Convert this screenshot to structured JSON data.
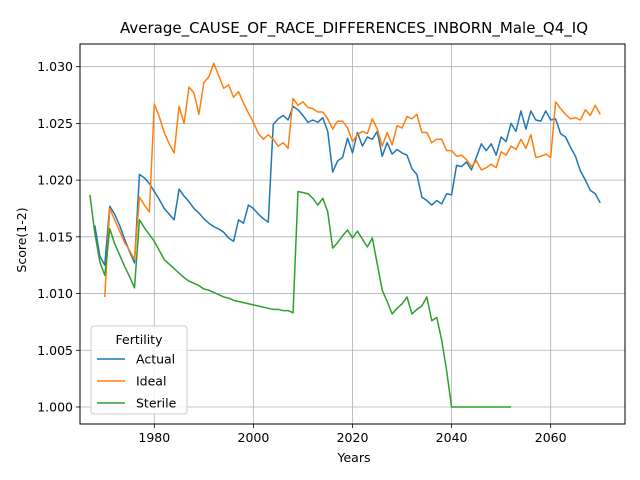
{
  "chart_data": {
    "type": "line",
    "title": "Average_CAUSE_OF_RACE_DIFFERENCES_INBORN_Male_Q4_IQ",
    "xlabel": "Years",
    "ylabel": "Score(1-2)",
    "xlim": [
      1965,
      2075
    ],
    "ylim": [
      0.9985,
      1.032
    ],
    "xticks": [
      1980,
      2000,
      2020,
      2040,
      2060
    ],
    "xtick_labels": [
      "1980",
      "2000",
      "2020",
      "2040",
      "2060"
    ],
    "yticks": [
      1.0,
      1.005,
      1.01,
      1.015,
      1.02,
      1.025,
      1.03
    ],
    "ytick_labels": [
      "1.000",
      "1.005",
      "1.010",
      "1.015",
      "1.020",
      "1.025",
      "1.030"
    ],
    "grid": true,
    "legend": {
      "title": "Fertility",
      "placement": "lower-left"
    },
    "series": [
      {
        "name": "Actual",
        "color": "#1f77b4",
        "x": [
          1968,
          1969,
          1970,
          1971,
          1972,
          1973,
          1974,
          1975,
          1976,
          1977,
          1978,
          1979,
          1980,
          1981,
          1982,
          1983,
          1984,
          1985,
          1986,
          1987,
          1988,
          1989,
          1990,
          1991,
          1992,
          1993,
          1994,
          1995,
          1996,
          1997,
          1998,
          1999,
          2000,
          2001,
          2002,
          2003,
          2004,
          2005,
          2006,
          2007,
          2008,
          2009,
          2010,
          2011,
          2012,
          2013,
          2014,
          2015,
          2016,
          2017,
          2018,
          2019,
          2020,
          2021,
          2022,
          2023,
          2024,
          2025,
          2026,
          2027,
          2028,
          2029,
          2030,
          2031,
          2032,
          2033,
          2034,
          2035,
          2036,
          2037,
          2038,
          2039,
          2040,
          2041,
          2042,
          2043,
          2044,
          2045,
          2046,
          2047,
          2048,
          2049,
          2050,
          2051,
          2052,
          2053,
          2054,
          2055,
          2056,
          2057,
          2058,
          2059,
          2060,
          2061,
          2062,
          2063,
          2064,
          2065,
          2066,
          2067,
          2068,
          2069,
          2070
        ],
        "y": [
          1.016,
          1.0133,
          1.0125,
          1.0177,
          1.017,
          1.016,
          1.0148,
          1.0137,
          1.0127,
          1.0205,
          1.0202,
          1.0197,
          1.019,
          1.0183,
          1.0175,
          1.017,
          1.0165,
          1.0192,
          1.0186,
          1.0181,
          1.0175,
          1.0171,
          1.0166,
          1.0162,
          1.0159,
          1.0157,
          1.0154,
          1.0149,
          1.0146,
          1.0165,
          1.0162,
          1.0178,
          1.0175,
          1.017,
          1.0166,
          1.0163,
          1.0249,
          1.0254,
          1.0257,
          1.0253,
          1.0265,
          1.0262,
          1.0257,
          1.0251,
          1.0253,
          1.0251,
          1.0255,
          1.0243,
          1.0207,
          1.0217,
          1.022,
          1.0237,
          1.0224,
          1.0242,
          1.023,
          1.0238,
          1.0236,
          1.0243,
          1.0221,
          1.0233,
          1.0223,
          1.0227,
          1.0224,
          1.0222,
          1.021,
          1.0205,
          1.0185,
          1.0182,
          1.0178,
          1.0182,
          1.0179,
          1.0188,
          1.0187,
          1.0213,
          1.0212,
          1.0216,
          1.0209,
          1.022,
          1.0232,
          1.0226,
          1.0232,
          1.0222,
          1.0238,
          1.0234,
          1.025,
          1.0243,
          1.0261,
          1.0245,
          1.0261,
          1.0253,
          1.0252,
          1.0261,
          1.0253,
          1.0254,
          1.0241,
          1.0238,
          1.0229,
          1.0221,
          1.0208,
          1.02,
          1.0191,
          1.0188,
          1.018
        ]
      },
      {
        "name": "Ideal",
        "color": "#ff7f0e",
        "x": [
          1970,
          1971,
          1972,
          1973,
          1974,
          1975,
          1976,
          1977,
          1978,
          1979,
          1980,
          1981,
          1982,
          1983,
          1984,
          1985,
          1986,
          1987,
          1988,
          1989,
          1990,
          1991,
          1992,
          1993,
          1994,
          1995,
          1996,
          1997,
          1998,
          1999,
          2000,
          2001,
          2002,
          2003,
          2004,
          2005,
          2006,
          2007,
          2008,
          2009,
          2010,
          2011,
          2012,
          2013,
          2014,
          2015,
          2016,
          2017,
          2018,
          2019,
          2020,
          2021,
          2022,
          2023,
          2024,
          2025,
          2026,
          2027,
          2028,
          2029,
          2030,
          2031,
          2032,
          2033,
          2034,
          2035,
          2036,
          2037,
          2038,
          2039,
          2040,
          2041,
          2042,
          2043,
          2044,
          2045,
          2046,
          2047,
          2048,
          2049,
          2050,
          2051,
          2052,
          2053,
          2054,
          2055,
          2056,
          2057,
          2058,
          2059,
          2060,
          2061,
          2062,
          2063,
          2064,
          2065,
          2066,
          2067,
          2068,
          2069,
          2070
        ],
        "y": [
          1.0097,
          1.0175,
          1.0165,
          1.0155,
          1.0145,
          1.0138,
          1.013,
          1.0185,
          1.0178,
          1.0172,
          1.0267,
          1.0256,
          1.0242,
          1.0232,
          1.0224,
          1.0265,
          1.025,
          1.0282,
          1.0277,
          1.0258,
          1.0286,
          1.0291,
          1.0303,
          1.0292,
          1.0281,
          1.0284,
          1.0273,
          1.0278,
          1.0268,
          1.0259,
          1.0251,
          1.0241,
          1.0236,
          1.024,
          1.0236,
          1.023,
          1.0233,
          1.0228,
          1.0272,
          1.0266,
          1.0269,
          1.0264,
          1.0263,
          1.026,
          1.026,
          1.0254,
          1.0245,
          1.0252,
          1.0252,
          1.0246,
          1.0234,
          1.024,
          1.0243,
          1.0241,
          1.0254,
          1.0245,
          1.023,
          1.0242,
          1.0231,
          1.0248,
          1.0246,
          1.0256,
          1.0254,
          1.0258,
          1.0242,
          1.0242,
          1.0233,
          1.0236,
          1.0236,
          1.0226,
          1.0226,
          1.0221,
          1.0222,
          1.0218,
          1.0212,
          1.0217,
          1.0209,
          1.0211,
          1.0214,
          1.0211,
          1.0225,
          1.0222,
          1.023,
          1.0227,
          1.0236,
          1.0228,
          1.024,
          1.022,
          1.0221,
          1.0223,
          1.022,
          1.0269,
          1.0263,
          1.0258,
          1.0254,
          1.0255,
          1.0253,
          1.0262,
          1.0257,
          1.0266,
          1.0258
        ]
      },
      {
        "name": "Sterile",
        "color": "#2ca02c",
        "x": [
          1967,
          1968,
          1969,
          1970,
          1971,
          1972,
          1973,
          1974,
          1975,
          1976,
          1977,
          1978,
          1979,
          1980,
          1981,
          1982,
          1983,
          1984,
          1985,
          1986,
          1987,
          1988,
          1989,
          1990,
          1991,
          1992,
          1993,
          1994,
          1995,
          1996,
          1997,
          1998,
          1999,
          2000,
          2001,
          2002,
          2003,
          2004,
          2005,
          2006,
          2007,
          2008,
          2009,
          2010,
          2011,
          2012,
          2013,
          2014,
          2015,
          2016,
          2017,
          2018,
          2019,
          2020,
          2021,
          2022,
          2023,
          2024,
          2025,
          2026,
          2027,
          2028,
          2029,
          2030,
          2031,
          2032,
          2033,
          2034,
          2035,
          2036,
          2037,
          2038,
          2039,
          2040,
          2041,
          2042,
          2043,
          2044,
          2045,
          2046,
          2047,
          2048,
          2049,
          2050,
          2051,
          2052
        ],
        "y": [
          1.0187,
          1.0153,
          1.0128,
          1.0116,
          1.0157,
          1.0144,
          1.0134,
          1.0124,
          1.0115,
          1.0105,
          1.0165,
          1.0158,
          1.0152,
          1.0146,
          1.0138,
          1.013,
          1.0126,
          1.0122,
          1.0118,
          1.0114,
          1.0111,
          1.0109,
          1.0107,
          1.0104,
          1.0103,
          1.0101,
          1.0099,
          1.0097,
          1.0096,
          1.0094,
          1.0093,
          1.0092,
          1.0091,
          1.009,
          1.0089,
          1.0088,
          1.0087,
          1.0086,
          1.0086,
          1.0085,
          1.0085,
          1.0083,
          1.019,
          1.0189,
          1.0188,
          1.0184,
          1.0178,
          1.0184,
          1.0172,
          1.014,
          1.0145,
          1.0151,
          1.0156,
          1.0149,
          1.0155,
          1.0148,
          1.0141,
          1.0149,
          1.0126,
          1.0103,
          1.0093,
          1.0082,
          1.0087,
          1.0091,
          1.0097,
          1.0082,
          1.0086,
          1.0089,
          1.0097,
          1.0076,
          1.0079,
          1.0059,
          1.0032,
          1.0,
          1.0,
          1.0,
          1.0,
          1.0,
          1.0,
          1.0,
          1.0,
          1.0,
          1.0,
          1.0,
          1.0,
          1.0
        ]
      }
    ]
  }
}
